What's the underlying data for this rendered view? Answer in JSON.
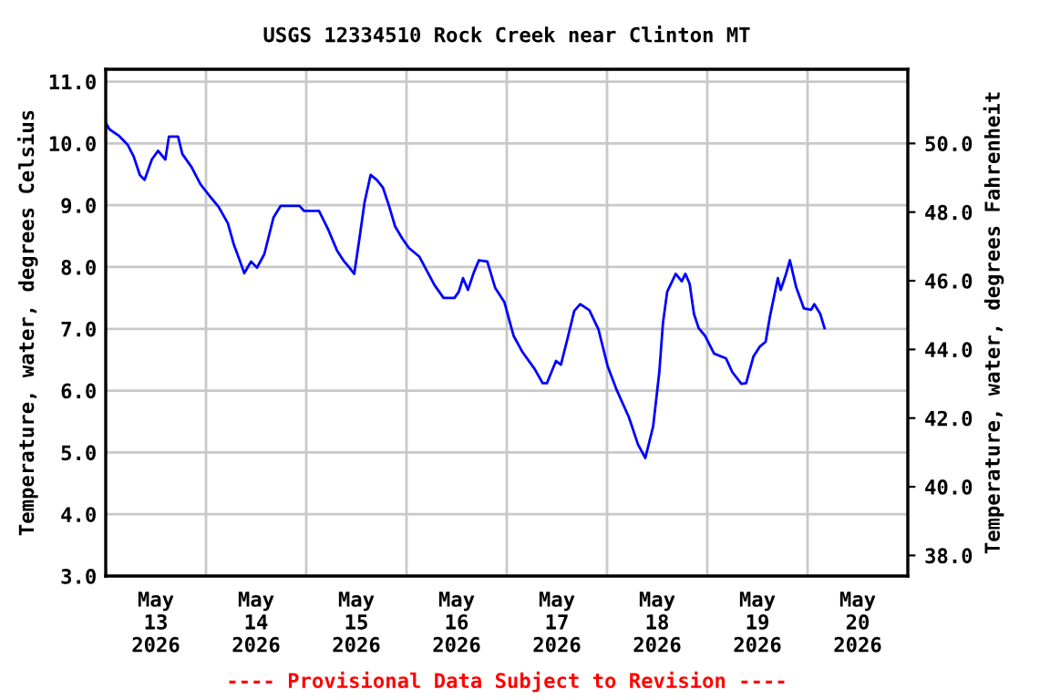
{
  "chart_data": {
    "type": "line",
    "title": "USGS 12334510 Rock Creek near Clinton MT",
    "ylabel": "Temperature, water, degrees Celsius",
    "y2label": "Temperature, water, degrees Fahrenheit",
    "annotations": [
      "---- Provisional Data Subject to Revision ----"
    ],
    "x": [
      "2026-05-13T00:08",
      "2026-05-13T00:52",
      "2026-05-13T03:03",
      "2026-05-13T05:14",
      "2026-05-13T06:41",
      "2026-05-13T08:10",
      "2026-05-13T09:18",
      "2026-05-13T11:02",
      "2026-05-13T12:31",
      "2026-05-13T14:16",
      "2026-05-13T15:08",
      "2026-05-13T17:19",
      "2026-05-13T18:20",
      "2026-05-13T20:31",
      "2026-05-13T22:41",
      "2026-05-14T00:52",
      "2026-05-14T03:03",
      "2026-05-14T05:14",
      "2026-05-14T06:41",
      "2026-05-14T08:10",
      "2026-05-14T09:10",
      "2026-05-14T10:47",
      "2026-05-14T12:13",
      "2026-05-14T13:58",
      "2026-05-14T16:09",
      "2026-05-14T17:53",
      "2026-05-14T22:23",
      "2026-05-14T23:26",
      "2026-05-15T03:03",
      "2026-05-15T05:14",
      "2026-05-15T07:25",
      "2026-05-15T08:52",
      "2026-05-15T10:20",
      "2026-05-15T11:29",
      "2026-05-15T12:31",
      "2026-05-15T13:58",
      "2026-05-15T15:24",
      "2026-05-15T16:53",
      "2026-05-15T18:20",
      "2026-05-15T19:46",
      "2026-05-15T21:15",
      "2026-05-15T23:00",
      "2026-05-16T00:34",
      "2026-05-16T03:03",
      "2026-05-16T06:41",
      "2026-05-16T08:52",
      "2026-05-16T11:29",
      "2026-05-16T12:31",
      "2026-05-16T13:32",
      "2026-05-16T14:43",
      "2026-05-16T16:09",
      "2026-05-16T17:20",
      "2026-05-16T19:20",
      "2026-05-16T21:15",
      "2026-05-16T23:26",
      "2026-05-17T01:37",
      "2026-05-17T03:48",
      "2026-05-17T06:41",
      "2026-05-17T08:36",
      "2026-05-17T09:36",
      "2026-05-17T11:47",
      "2026-05-17T12:58",
      "2026-05-17T14:43",
      "2026-05-17T16:09",
      "2026-05-17T17:35",
      "2026-05-17T19:46",
      "2026-05-17T21:57",
      "2026-05-18T00:08",
      "2026-05-18T02:19",
      "2026-05-18T05:14",
      "2026-05-18T07:25",
      "2026-05-18T09:10",
      "2026-05-18T11:02",
      "2026-05-18T12:31",
      "2026-05-18T13:23",
      "2026-05-18T14:24",
      "2026-05-18T16:27",
      "2026-05-18T17:53",
      "2026-05-18T18:46",
      "2026-05-18T19:46",
      "2026-05-18T20:49",
      "2026-05-18T21:57",
      "2026-05-18T23:26",
      "2026-05-19T01:37",
      "2026-05-19T04:30",
      "2026-05-19T05:59",
      "2026-05-19T08:10",
      "2026-05-19T09:18",
      "2026-05-19T11:02",
      "2026-05-19T12:32",
      "2026-05-19T13:58",
      "2026-05-19T14:58",
      "2026-05-19T16:53",
      "2026-05-19T17:35",
      "2026-05-19T18:46",
      "2026-05-19T19:46",
      "2026-05-19T21:15",
      "2026-05-19T23:08",
      "2026-05-20T00:52",
      "2026-05-20T01:37",
      "2026-05-20T03:03",
      "2026-05-20T04:04"
    ],
    "series": [
      {
        "color": "#0000ff",
        "values": [
          10.32,
          10.23,
          10.13,
          9.98,
          9.79,
          9.49,
          9.41,
          9.74,
          9.88,
          9.74,
          10.11,
          10.11,
          9.83,
          9.62,
          9.34,
          9.15,
          8.97,
          8.71,
          8.36,
          8.09,
          7.9,
          8.09,
          7.99,
          8.21,
          8.8,
          8.99,
          8.99,
          8.91,
          8.91,
          8.61,
          8.26,
          8.11,
          7.99,
          7.89,
          8.36,
          9.05,
          9.49,
          9.41,
          9.29,
          9.0,
          8.66,
          8.46,
          8.31,
          8.17,
          7.71,
          7.5,
          7.5,
          7.6,
          7.82,
          7.63,
          7.92,
          8.11,
          8.09,
          7.66,
          7.43,
          6.89,
          6.62,
          6.35,
          6.12,
          6.12,
          6.48,
          6.42,
          6.89,
          7.29,
          7.4,
          7.3,
          6.99,
          6.4,
          6.01,
          5.57,
          5.13,
          4.91,
          5.42,
          6.3,
          7.09,
          7.6,
          7.89,
          7.77,
          7.89,
          7.73,
          7.24,
          7.01,
          6.89,
          6.6,
          6.52,
          6.3,
          6.11,
          6.12,
          6.55,
          6.71,
          6.79,
          7.19,
          7.82,
          7.63,
          7.87,
          8.11,
          7.68,
          7.33,
          7.31,
          7.4,
          7.24,
          7.01
        ]
      }
    ],
    "xlim": [
      "2026-05-13T00:00",
      "2026-05-21T00:00"
    ],
    "xticks": [
      {
        "value": "2026-05-14T00:00",
        "label": null
      },
      {
        "value": "2026-05-15T00:00",
        "label": null
      },
      {
        "value": "2026-05-16T00:00",
        "label": null
      },
      {
        "value": "2026-05-17T00:00",
        "label": null
      },
      {
        "value": "2026-05-18T00:00",
        "label": null
      },
      {
        "value": "2026-05-19T00:00",
        "label": null
      },
      {
        "value": "2026-05-20T00:00",
        "label": null
      },
      {
        "value": "2026-05-13T12:00",
        "label": "May\n13\n2026"
      },
      {
        "value": "2026-05-14T12:00",
        "label": "May\n14\n2026"
      },
      {
        "value": "2026-05-15T12:00",
        "label": "May\n15\n2026"
      },
      {
        "value": "2026-05-16T12:00",
        "label": "May\n16\n2026"
      },
      {
        "value": "2026-05-17T12:00",
        "label": "May\n17\n2026"
      },
      {
        "value": "2026-05-18T12:00",
        "label": "May\n18\n2026"
      },
      {
        "value": "2026-05-19T12:00",
        "label": "May\n19\n2026"
      },
      {
        "value": "2026-05-20T12:00",
        "label": "May\n20\n2026"
      }
    ],
    "ylim": [
      3.0,
      11.2
    ],
    "yticks": [
      {
        "value": 3,
        "label": "3.0"
      },
      {
        "value": 4,
        "label": "4.0"
      },
      {
        "value": 5,
        "label": "5.0"
      },
      {
        "value": 6,
        "label": "6.0"
      },
      {
        "value": 7,
        "label": "7.0"
      },
      {
        "value": 8,
        "label": "8.0"
      },
      {
        "value": 9,
        "label": "9.0"
      },
      {
        "value": 10,
        "label": "10.0"
      },
      {
        "value": 11,
        "label": "11.0"
      }
    ],
    "y2lim": [
      37.4,
      52.16
    ],
    "y2ticks": [
      {
        "value": 38,
        "label": "38.0"
      },
      {
        "value": 40,
        "label": "40.0"
      },
      {
        "value": 42,
        "label": "42.0"
      },
      {
        "value": 44,
        "label": "44.0"
      },
      {
        "value": 46,
        "label": "46.0"
      },
      {
        "value": 48,
        "label": "48.0"
      },
      {
        "value": 50,
        "label": "50.0"
      }
    ],
    "grid": true,
    "legend": false,
    "line_style": "solid",
    "marker": "none"
  }
}
